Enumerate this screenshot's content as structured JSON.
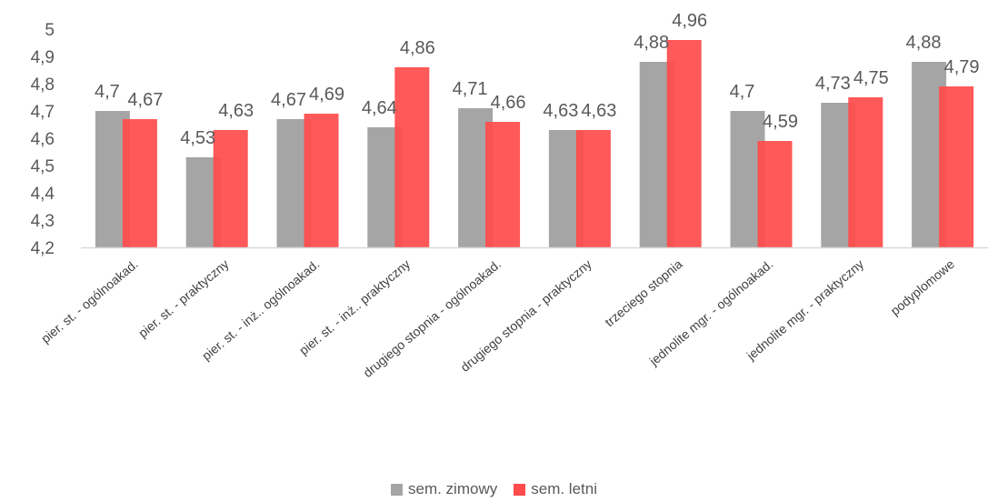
{
  "chart_data": {
    "type": "bar",
    "title": "",
    "xlabel": "",
    "ylabel": "",
    "ylim": [
      4.2,
      5.0
    ],
    "yticks": [
      4.2,
      4.3,
      4.4,
      4.5,
      4.6,
      4.7,
      4.8,
      4.9,
      5.0
    ],
    "ytick_labels": [
      "4,2",
      "4,3",
      "4,4",
      "4,5",
      "4,6",
      "4,7",
      "4,8",
      "4,9",
      "5"
    ],
    "grid": false,
    "legend_position": "bottom",
    "categories": [
      "pier. st. - ogólnoakad.",
      "pier. st. - praktyczny",
      "pier. st. - inż.. ogólnoakad.",
      "pier. st. - inż.. praktyczny",
      "drugiego stopnia - ogólnoakad.",
      "drugiego stopnia - praktyczny",
      "trzeciego stopnia",
      "jednolite mgr. - ogólnoakad.",
      "jednolite mgr. - praktyczny",
      "podyplomowe"
    ],
    "series": [
      {
        "name": "sem. zimowy",
        "color": "#a5a5a5",
        "values": [
          4.7,
          4.53,
          4.67,
          4.64,
          4.71,
          4.63,
          4.88,
          4.7,
          4.73,
          4.88
        ],
        "labels": [
          "4,7",
          "4,53",
          "4,67",
          "4,64",
          "4,71",
          "4,63",
          "4,88",
          "4,7",
          "4,73",
          "4,88"
        ]
      },
      {
        "name": "sem. letni",
        "color": "#ff4b4b",
        "values": [
          4.67,
          4.63,
          4.69,
          4.86,
          4.66,
          4.63,
          4.96,
          4.59,
          4.75,
          4.79
        ],
        "labels": [
          "4,67",
          "4,63",
          "4,69",
          "4,86",
          "4,66",
          "4,63",
          "4,96",
          "4,59",
          "4,75",
          "4,79"
        ]
      }
    ]
  }
}
